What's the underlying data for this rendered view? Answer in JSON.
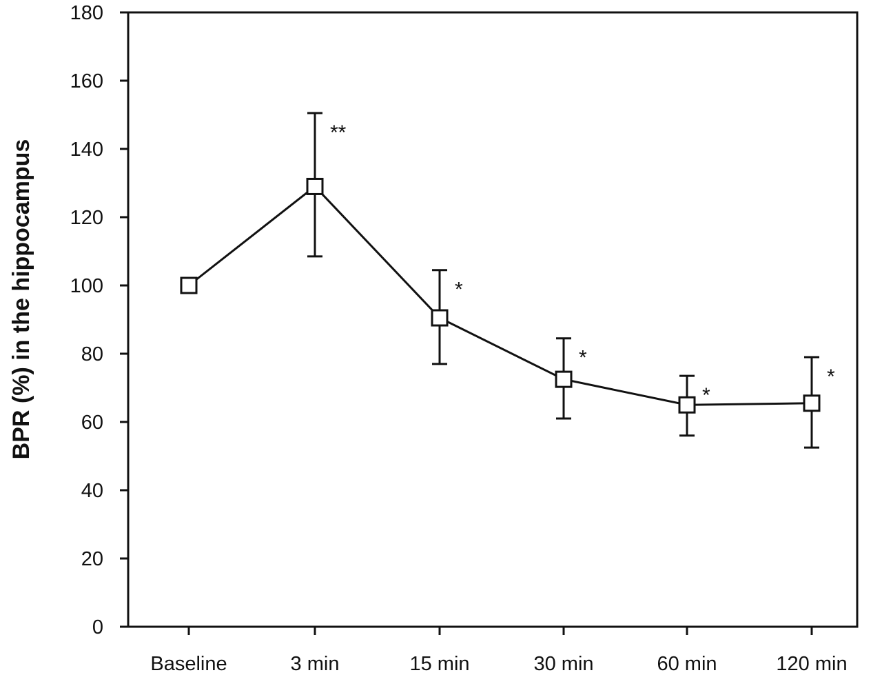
{
  "chart_data": {
    "type": "line",
    "title": "",
    "xlabel": "",
    "ylabel": "BPR (%) in the hippocampus",
    "ylim": [
      0,
      180
    ],
    "yticks": [
      0,
      20,
      40,
      60,
      80,
      100,
      120,
      140,
      160,
      180
    ],
    "categories": [
      "Baseline",
      "3 min",
      "15 min",
      "30 min",
      "60 min",
      "120 min"
    ],
    "series": [
      {
        "values": [
          100,
          129,
          90.5,
          72.5,
          65,
          65.5
        ],
        "error_upper": [
          null,
          150.5,
          104.5,
          84.5,
          73.5,
          79
        ],
        "error_lower": [
          null,
          108.5,
          77,
          61,
          56,
          52.5
        ],
        "significance": [
          "",
          "**",
          "*",
          "*",
          "*",
          "*"
        ]
      }
    ],
    "grid": false,
    "legend": "none",
    "marker": "open-square",
    "line_color": "#111111"
  }
}
